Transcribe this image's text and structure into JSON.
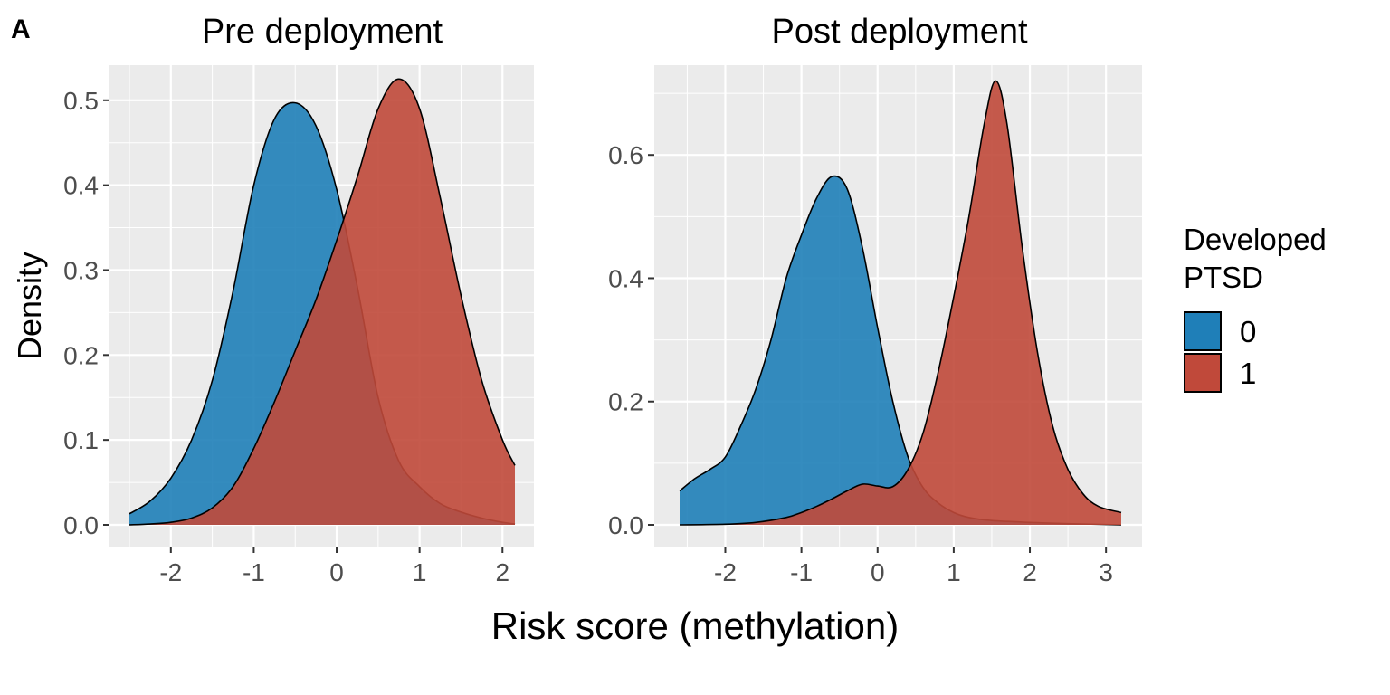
{
  "panel_label": "A",
  "legend": {
    "title_line1": "Developed",
    "title_line2": "PTSD"
  },
  "colors": {
    "class_0": "#1f7fb8",
    "class_1": "#c0493a",
    "panel_bg": "#ebebeb",
    "grid": "#ffffff"
  },
  "chart_data": {
    "type": "area",
    "xlabel": "Risk score (methylation)",
    "ylabel": "Density",
    "grid": true,
    "legend_position": "right",
    "panels": [
      {
        "title": "Pre deployment",
        "xlim": [
          -2.5,
          2.15
        ],
        "ylim": [
          0,
          0.53
        ],
        "xticks": [
          -2,
          -1,
          0,
          1,
          2
        ],
        "yticks": [
          0.0,
          0.1,
          0.2,
          0.3,
          0.4,
          0.5
        ],
        "series": [
          {
            "name": "0",
            "x": [
              -2.5,
              -2.25,
              -2.0,
              -1.75,
              -1.5,
              -1.25,
              -1.0,
              -0.75,
              -0.5,
              -0.25,
              0.0,
              0.25,
              0.5,
              0.75,
              1.0,
              1.25,
              1.5,
              1.75,
              2.0,
              2.15
            ],
            "y": [
              0.013,
              0.028,
              0.055,
              0.1,
              0.17,
              0.275,
              0.4,
              0.478,
              0.497,
              0.47,
              0.395,
              0.28,
              0.15,
              0.075,
              0.045,
              0.025,
              0.015,
              0.008,
              0.003,
              0.001
            ]
          },
          {
            "name": "1",
            "x": [
              -2.5,
              -2.25,
              -2.0,
              -1.75,
              -1.5,
              -1.25,
              -1.0,
              -0.75,
              -0.5,
              -0.25,
              0.0,
              0.25,
              0.5,
              0.75,
              1.0,
              1.25,
              1.5,
              1.75,
              2.0,
              2.15
            ],
            "y": [
              0.0,
              0.001,
              0.003,
              0.008,
              0.02,
              0.045,
              0.09,
              0.145,
              0.205,
              0.265,
              0.335,
              0.41,
              0.49,
              0.525,
              0.49,
              0.385,
              0.27,
              0.17,
              0.1,
              0.07
            ]
          }
        ]
      },
      {
        "title": "Post deployment",
        "xlim": [
          -2.6,
          3.2
        ],
        "ylim": [
          0,
          0.73
        ],
        "xticks": [
          -2,
          -1,
          0,
          1,
          2,
          3
        ],
        "yticks": [
          0.0,
          0.2,
          0.4,
          0.6
        ],
        "series": [
          {
            "name": "0",
            "x": [
              -2.6,
              -2.4,
              -2.2,
              -2.0,
              -1.8,
              -1.6,
              -1.4,
              -1.2,
              -1.0,
              -0.8,
              -0.6,
              -0.4,
              -0.2,
              0.0,
              0.2,
              0.4,
              0.6,
              0.8,
              1.0,
              1.2,
              1.5,
              2.0,
              2.5,
              3.2
            ],
            "y": [
              0.055,
              0.075,
              0.09,
              0.11,
              0.16,
              0.22,
              0.3,
              0.4,
              0.47,
              0.53,
              0.565,
              0.545,
              0.45,
              0.32,
              0.2,
              0.11,
              0.06,
              0.035,
              0.02,
              0.012,
              0.007,
              0.004,
              0.002,
              0.0
            ]
          },
          {
            "name": "1",
            "x": [
              -2.6,
              -2.0,
              -1.6,
              -1.2,
              -1.0,
              -0.8,
              -0.6,
              -0.4,
              -0.2,
              0.0,
              0.2,
              0.4,
              0.6,
              0.8,
              1.0,
              1.2,
              1.4,
              1.55,
              1.7,
              1.9,
              2.1,
              2.3,
              2.5,
              2.7,
              2.9,
              3.2
            ],
            "y": [
              0.0,
              0.001,
              0.004,
              0.012,
              0.02,
              0.03,
              0.042,
              0.055,
              0.066,
              0.063,
              0.062,
              0.09,
              0.15,
              0.25,
              0.37,
              0.5,
              0.65,
              0.72,
              0.65,
              0.45,
              0.28,
              0.16,
              0.09,
              0.05,
              0.03,
              0.02
            ]
          }
        ]
      }
    ]
  }
}
